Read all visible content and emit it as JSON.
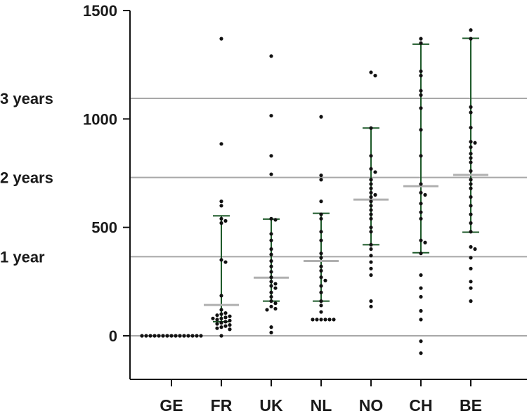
{
  "chart_data": {
    "type": "scatter",
    "title": "",
    "xlabel": "",
    "ylabel": "",
    "ylim": [
      -200,
      1500
    ],
    "yticks": [
      0,
      500,
      1000,
      1500
    ],
    "grid": false,
    "categories": [
      "GE",
      "FR",
      "UK",
      "NL",
      "NO",
      "CH",
      "BE"
    ],
    "reference_lines": [
      {
        "label": "1 year",
        "value": 365
      },
      {
        "label": "2 years",
        "value": 730
      },
      {
        "label": "3 years",
        "value": 1095
      }
    ],
    "series": [
      {
        "category": "GE",
        "median": 0,
        "q1": 0,
        "q3": 0,
        "points": [
          0,
          0,
          0,
          0,
          0,
          0,
          0,
          0,
          0,
          0,
          0,
          0,
          0,
          0,
          0
        ]
      },
      {
        "category": "FR",
        "median": 142,
        "q1": 65,
        "q3": 553,
        "points": [
          1370,
          885,
          620,
          600,
          540,
          530,
          520,
          350,
          340,
          185,
          120,
          105,
          100,
          95,
          90,
          85,
          80,
          80,
          75,
          70,
          65,
          60,
          55,
          50,
          45,
          40,
          35,
          30,
          0
        ]
      },
      {
        "category": "UK",
        "median": 268,
        "q1": 160,
        "q3": 538,
        "points": [
          1290,
          1015,
          830,
          745,
          540,
          535,
          470,
          440,
          400,
          375,
          345,
          320,
          295,
          270,
          250,
          240,
          230,
          220,
          200,
          180,
          160,
          150,
          135,
          125,
          120,
          40,
          15
        ]
      },
      {
        "category": "NL",
        "median": 345,
        "q1": 160,
        "q3": 565,
        "points": [
          1010,
          740,
          720,
          620,
          560,
          540,
          480,
          440,
          380,
          360,
          320,
          300,
          270,
          255,
          230,
          200,
          160,
          140,
          110,
          75,
          75,
          75,
          75,
          75,
          75
        ]
      },
      {
        "category": "NO",
        "median": 628,
        "q1": 420,
        "q3": 958,
        "points": [
          1215,
          1200,
          958,
          830,
          770,
          755,
          720,
          700,
          680,
          660,
          650,
          640,
          620,
          600,
          580,
          560,
          540,
          500,
          480,
          420,
          400,
          370,
          340,
          310,
          280,
          160,
          135
        ]
      },
      {
        "category": "CH",
        "median": 690,
        "q1": 383,
        "q3": 1345,
        "points": [
          1370,
          1350,
          1220,
          1200,
          1130,
          1110,
          1050,
          950,
          830,
          700,
          660,
          650,
          610,
          570,
          540,
          440,
          430,
          380,
          280,
          220,
          180,
          115,
          75,
          -25,
          -80
        ]
      },
      {
        "category": "BE",
        "median": 742,
        "q1": 478,
        "q3": 1372,
        "points": [
          1410,
          1370,
          1055,
          1030,
          960,
          895,
          890,
          870,
          840,
          820,
          800,
          760,
          720,
          700,
          680,
          640,
          600,
          560,
          520,
          480,
          410,
          400,
          360,
          310,
          250,
          220,
          160
        ]
      }
    ],
    "colors": {
      "points": "#111111",
      "whiskers": "#1e5a2a",
      "median": "#b0b0b0",
      "reference_lines": "#a8a8a8",
      "axis": "#111111"
    }
  }
}
